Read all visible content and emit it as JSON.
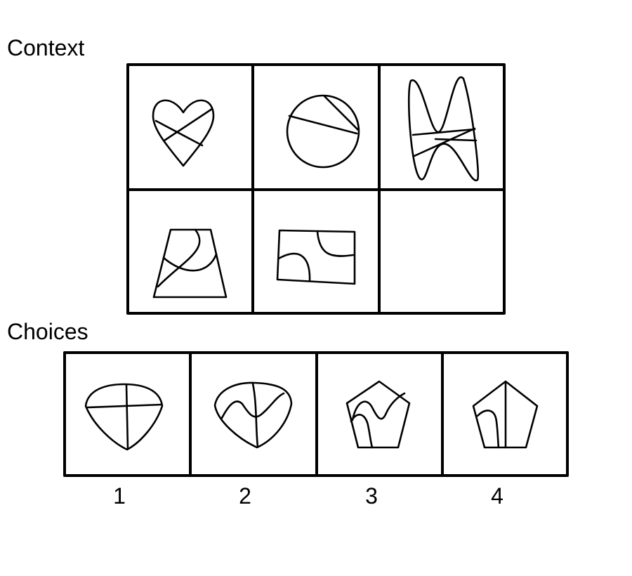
{
  "context": {
    "label": "Context",
    "cells": [
      {
        "figure": "heart-with-crossing-straight-lines"
      },
      {
        "figure": "circle-with-two-straight-chords"
      },
      {
        "figure": "wavy-hourglass-with-crossing-straight-lines"
      },
      {
        "figure": "trapezoid-with-crossing-curves"
      },
      {
        "figure": "rectangle-with-two-curves"
      },
      {
        "figure": "empty-answer-cell"
      }
    ]
  },
  "choices": {
    "label": "Choices",
    "items": [
      {
        "number": "1",
        "figure": "rounded-shield-with-straight-cross"
      },
      {
        "number": "2",
        "figure": "rounded-shield-with-two-curves"
      },
      {
        "number": "3",
        "figure": "pentagon-with-two-curves"
      },
      {
        "number": "4",
        "figure": "pentagon-with-curve-and-straight-line"
      }
    ]
  }
}
